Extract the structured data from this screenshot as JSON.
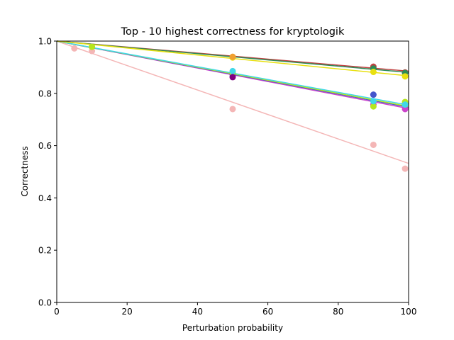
{
  "chart_data": {
    "type": "scatter",
    "title": "Top - 10 highest correctness for kryptologik",
    "xlabel": "Perturbation probability",
    "ylabel": "Correctness",
    "xlim": [
      0,
      100
    ],
    "ylim": [
      0,
      1
    ],
    "xticks": [
      "0",
      "20",
      "40",
      "60",
      "80",
      "100"
    ],
    "yticks": [
      "0.0",
      "0.2",
      "0.4",
      "0.6",
      "0.8",
      "1.0"
    ],
    "grid": false,
    "legend": "none",
    "series": [
      {
        "color": "#f4b6b6",
        "points": [
          [
            5,
            0.972
          ],
          [
            10,
            0.962
          ],
          [
            50,
            0.74
          ],
          [
            90,
            0.603
          ],
          [
            99,
            0.512
          ]
        ],
        "fit": [
          [
            0,
            1.0
          ],
          [
            100,
            0.532
          ]
        ]
      },
      {
        "color": "#cc44cc",
        "points": [
          [
            50,
            0.866
          ],
          [
            90,
            0.757
          ],
          [
            99,
            0.74
          ]
        ],
        "fit": [
          [
            0,
            1.0
          ],
          [
            100,
            0.742
          ]
        ]
      },
      {
        "color": "#4455cc",
        "points": [
          [
            50,
            0.873
          ],
          [
            90,
            0.795
          ],
          [
            99,
            0.76
          ]
        ],
        "fit": [
          [
            0,
            1.0
          ],
          [
            100,
            0.747
          ]
        ]
      },
      {
        "color": "#b5e61d",
        "points": [
          [
            10,
            0.978
          ],
          [
            50,
            0.878
          ],
          [
            90,
            0.75
          ],
          [
            99,
            0.767
          ]
        ],
        "fit": [
          [
            0,
            1.0
          ],
          [
            100,
            0.75
          ]
        ]
      },
      {
        "color": "#40d8e8",
        "points": [
          [
            50,
            0.885
          ],
          [
            90,
            0.77
          ],
          [
            99,
            0.757
          ]
        ],
        "fit": [
          [
            0,
            1.0
          ],
          [
            100,
            0.755
          ]
        ]
      },
      {
        "color": "#800080",
        "points": [
          [
            50,
            0.862
          ]
        ],
        "fit": null
      },
      {
        "color": "#c04040",
        "points": [
          [
            90,
            0.902
          ],
          [
            99,
            0.88
          ]
        ],
        "fit": [
          [
            0,
            1.0
          ],
          [
            100,
            0.885
          ]
        ]
      },
      {
        "color": "#2e8b57",
        "points": [
          [
            50,
            0.938
          ],
          [
            90,
            0.895
          ],
          [
            99,
            0.878
          ]
        ],
        "fit": [
          [
            0,
            1.0
          ],
          [
            100,
            0.88
          ]
        ]
      },
      {
        "color": "#e8e010",
        "points": [
          [
            50,
            0.937
          ],
          [
            90,
            0.882
          ],
          [
            99,
            0.865
          ]
        ],
        "fit": [
          [
            0,
            1.0
          ],
          [
            100,
            0.867
          ]
        ]
      },
      {
        "color": "#f0a030",
        "points": [
          [
            50,
            0.94
          ]
        ],
        "fit": null
      }
    ]
  }
}
